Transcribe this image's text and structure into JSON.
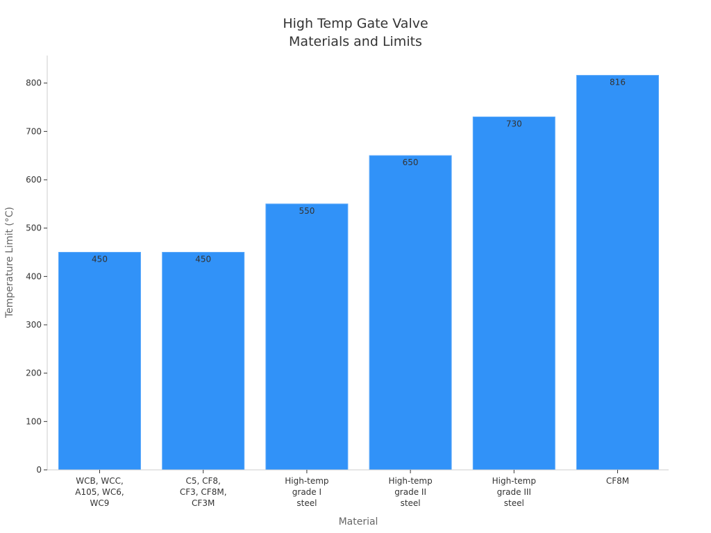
{
  "chart_data": {
    "type": "bar",
    "title_lines": [
      "High Temp Gate Valve",
      "Materials and Limits"
    ],
    "xlabel": "Material",
    "ylabel": "Temperature Limit (°C)",
    "categories": [
      [
        "WCB, WCC,",
        "A105, WC6,",
        "WC9"
      ],
      [
        "C5, CF8,",
        "CF3, CF8M,",
        "CF3M"
      ],
      [
        "High-temp",
        "grade I",
        "steel"
      ],
      [
        "High-temp",
        "grade II",
        "steel"
      ],
      [
        "High-temp",
        "grade III",
        "steel"
      ],
      [
        "CF8M"
      ]
    ],
    "values": [
      450,
      450,
      550,
      650,
      730,
      816
    ],
    "value_labels": [
      "450",
      "450",
      "550",
      "650",
      "730",
      "816"
    ],
    "yticks": [
      0,
      100,
      200,
      300,
      400,
      500,
      600,
      700,
      800
    ],
    "ylim": [
      0,
      857
    ],
    "grid": false,
    "bar_color": "#3192f8"
  }
}
